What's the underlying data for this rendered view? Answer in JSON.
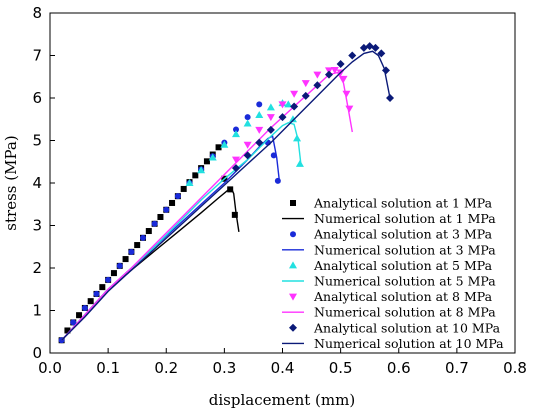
{
  "chart_data": {
    "type": "line",
    "xlabel": "displacement (mm)",
    "ylabel": "stress (MPa)",
    "xlim": [
      0.0,
      0.8
    ],
    "ylim": [
      0,
      8
    ],
    "xticks": [
      "0.0",
      "0.1",
      "0.2",
      "0.3",
      "0.4",
      "0.5",
      "0.6",
      "0.7",
      "0.8"
    ],
    "yticks": [
      "0",
      "1",
      "2",
      "3",
      "4",
      "5",
      "6",
      "7",
      "8"
    ],
    "grid": false,
    "legend_position": "lower-right",
    "series": [
      {
        "name": "Analytical solution at 1 MPa",
        "kind": "markers",
        "marker": "square",
        "color": "#000000",
        "x": [
          0.02,
          0.03,
          0.04,
          0.05,
          0.06,
          0.07,
          0.08,
          0.09,
          0.1,
          0.11,
          0.12,
          0.13,
          0.14,
          0.15,
          0.16,
          0.17,
          0.18,
          0.19,
          0.2,
          0.21,
          0.22,
          0.23,
          0.24,
          0.25,
          0.26,
          0.27,
          0.28,
          0.29,
          0.3,
          0.31,
          0.318
        ],
        "y": [
          0.3,
          0.53,
          0.72,
          0.89,
          1.06,
          1.22,
          1.39,
          1.55,
          1.72,
          1.88,
          2.05,
          2.21,
          2.38,
          2.54,
          2.71,
          2.87,
          3.04,
          3.2,
          3.37,
          3.53,
          3.69,
          3.86,
          4.02,
          4.18,
          4.35,
          4.51,
          4.67,
          4.84,
          4.1,
          3.85,
          3.25
        ]
      },
      {
        "name": "Numerical solution at 1 MPa",
        "kind": "line",
        "color": "#000000",
        "x": [
          0.02,
          0.04,
          0.06,
          0.08,
          0.1,
          0.14,
          0.18,
          0.22,
          0.26,
          0.29,
          0.305,
          0.312,
          0.316,
          0.32,
          0.325
        ],
        "y": [
          0.3,
          0.6,
          0.9,
          1.2,
          1.5,
          1.95,
          2.4,
          2.85,
          3.3,
          3.65,
          3.82,
          3.88,
          3.75,
          3.3,
          2.85
        ]
      },
      {
        "name": "Analytical solution at 3 MPa",
        "kind": "markers",
        "marker": "circle",
        "color": "#1a2bd8",
        "x": [
          0.02,
          0.04,
          0.06,
          0.08,
          0.1,
          0.12,
          0.14,
          0.16,
          0.18,
          0.2,
          0.22,
          0.24,
          0.26,
          0.28,
          0.3,
          0.32,
          0.34,
          0.36,
          0.375,
          0.385,
          0.392
        ],
        "y": [
          0.3,
          0.72,
          1.06,
          1.39,
          1.72,
          2.05,
          2.38,
          2.71,
          3.04,
          3.37,
          3.69,
          4.0,
          4.32,
          4.63,
          4.95,
          5.26,
          5.55,
          5.85,
          4.95,
          4.65,
          4.05
        ]
      },
      {
        "name": "Numerical solution at 3 MPa",
        "kind": "line",
        "color": "#1a2bd8",
        "x": [
          0.02,
          0.04,
          0.06,
          0.08,
          0.1,
          0.14,
          0.18,
          0.22,
          0.26,
          0.3,
          0.34,
          0.36,
          0.375,
          0.383,
          0.39,
          0.395
        ],
        "y": [
          0.3,
          0.6,
          0.9,
          1.2,
          1.5,
          2.0,
          2.5,
          3.0,
          3.5,
          4.0,
          4.55,
          4.85,
          5.05,
          5.1,
          4.6,
          4.0
        ]
      },
      {
        "name": "Analytical solution at 5 MPa",
        "kind": "markers",
        "marker": "triangle-up",
        "color": "#22e0e0",
        "x": [
          0.24,
          0.26,
          0.28,
          0.3,
          0.32,
          0.34,
          0.36,
          0.38,
          0.4,
          0.41,
          0.418,
          0.425,
          0.43
        ],
        "y": [
          4.0,
          4.3,
          4.6,
          4.9,
          5.15,
          5.4,
          5.6,
          5.78,
          5.88,
          5.85,
          5.5,
          5.05,
          4.45
        ]
      },
      {
        "name": "Numerical solution at 5 MPa",
        "kind": "line",
        "color": "#22e0e0",
        "x": [
          0.02,
          0.06,
          0.1,
          0.14,
          0.18,
          0.22,
          0.26,
          0.3,
          0.34,
          0.38,
          0.4,
          0.41,
          0.42,
          0.427,
          0.432
        ],
        "y": [
          0.3,
          0.9,
          1.5,
          2.0,
          2.5,
          3.05,
          3.6,
          4.1,
          4.55,
          5.1,
          5.35,
          5.42,
          5.38,
          5.0,
          4.4
        ]
      },
      {
        "name": "Analytical solution at 8 MPa",
        "kind": "markers",
        "marker": "triangle-down",
        "color": "#ff33ff",
        "x": [
          0.32,
          0.34,
          0.36,
          0.38,
          0.4,
          0.42,
          0.44,
          0.46,
          0.48,
          0.49,
          0.5,
          0.505,
          0.51,
          0.515
        ],
        "y": [
          4.55,
          4.9,
          5.25,
          5.55,
          5.85,
          6.1,
          6.35,
          6.55,
          6.65,
          6.66,
          6.6,
          6.45,
          6.1,
          5.75
        ]
      },
      {
        "name": "Numerical solution at 8 MPa",
        "kind": "line",
        "color": "#ff33ff",
        "x": [
          0.02,
          0.06,
          0.1,
          0.14,
          0.18,
          0.22,
          0.26,
          0.3,
          0.34,
          0.38,
          0.42,
          0.46,
          0.48,
          0.495,
          0.505,
          0.513,
          0.52
        ],
        "y": [
          0.3,
          0.9,
          1.5,
          2.0,
          2.55,
          3.1,
          3.65,
          4.2,
          4.75,
          5.3,
          5.8,
          6.3,
          6.55,
          6.6,
          6.35,
          5.75,
          5.2
        ]
      },
      {
        "name": "Analytical solution at 10 MPa",
        "kind": "markers",
        "marker": "diamond",
        "color": "#0b1a78",
        "x": [
          0.32,
          0.34,
          0.36,
          0.38,
          0.4,
          0.42,
          0.44,
          0.46,
          0.48,
          0.5,
          0.52,
          0.54,
          0.55,
          0.56,
          0.57,
          0.578,
          0.585
        ],
        "y": [
          4.35,
          4.65,
          4.95,
          5.25,
          5.55,
          5.8,
          6.05,
          6.3,
          6.55,
          6.8,
          7.0,
          7.18,
          7.22,
          7.18,
          7.05,
          6.65,
          6.0
        ]
      },
      {
        "name": "Numerical solution at 10 MPa",
        "kind": "line",
        "color": "#0b1a78",
        "x": [
          0.02,
          0.06,
          0.1,
          0.14,
          0.18,
          0.22,
          0.26,
          0.3,
          0.34,
          0.38,
          0.42,
          0.46,
          0.5,
          0.52,
          0.54,
          0.555,
          0.565,
          0.575,
          0.585
        ],
        "y": [
          0.3,
          0.85,
          1.45,
          1.95,
          2.45,
          2.95,
          3.45,
          3.95,
          4.45,
          4.95,
          5.5,
          6.05,
          6.6,
          6.85,
          7.05,
          7.1,
          7.0,
          6.7,
          6.0
        ]
      }
    ]
  }
}
